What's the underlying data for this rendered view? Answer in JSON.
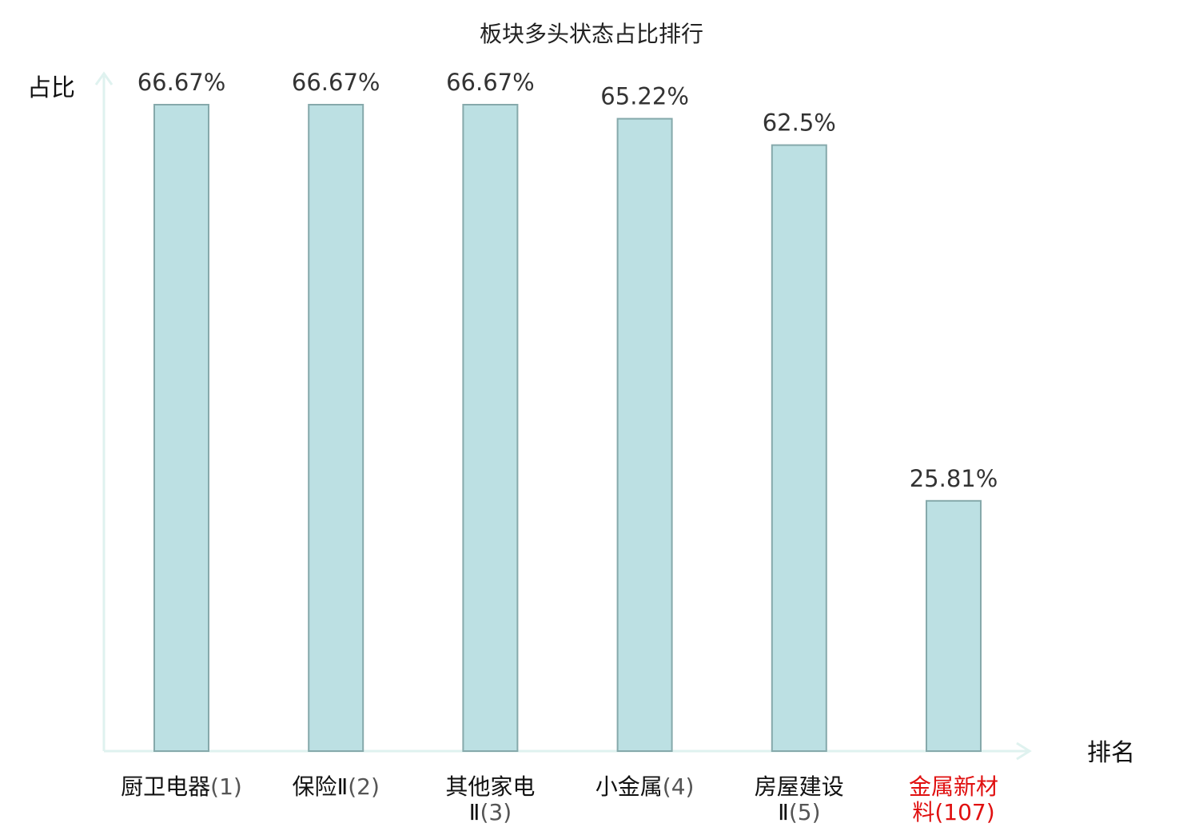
{
  "chart_data": {
    "type": "bar",
    "title": "板块多头状态占比排行",
    "xlabel": "排名",
    "ylabel": "占比",
    "categories": [
      {
        "name": "厨卫电器",
        "lines": [
          "厨卫电器"
        ],
        "rank": "1",
        "highlight": false
      },
      {
        "name": "保险Ⅱ",
        "lines": [
          "保险Ⅱ"
        ],
        "rank": "2",
        "highlight": false
      },
      {
        "name": "其他家电Ⅱ",
        "lines": [
          "其他家电",
          "Ⅱ"
        ],
        "rank": "3",
        "highlight": false
      },
      {
        "name": "小金属",
        "lines": [
          "小金属"
        ],
        "rank": "4",
        "highlight": false
      },
      {
        "name": "房屋建设Ⅱ",
        "lines": [
          "房屋建设",
          "Ⅱ"
        ],
        "rank": "5",
        "highlight": false
      },
      {
        "name": "金属新材料",
        "lines": [
          "金属新材",
          "料"
        ],
        "rank": "107",
        "highlight": true
      }
    ],
    "values": [
      66.67,
      66.67,
      66.67,
      65.22,
      62.5,
      25.81
    ],
    "value_labels": [
      "66.67%",
      "66.67%",
      "66.67%",
      "65.22%",
      "62.5%",
      "25.81%"
    ],
    "ylim": [
      0,
      66.67
    ],
    "grid": false,
    "colors": {
      "bar_fill": "#bce0e3",
      "bar_stroke": "#86a9ab",
      "axis": "#dff2ef",
      "highlight_label": "#e01010",
      "normal_label": "#111111",
      "rank_label": "#555555"
    }
  }
}
